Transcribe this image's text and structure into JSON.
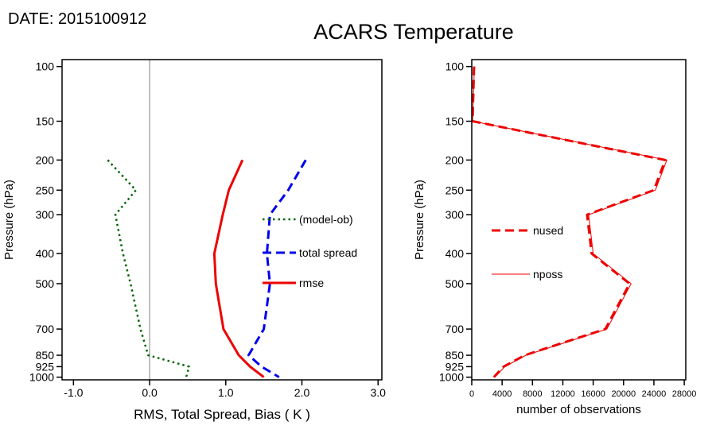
{
  "header": {
    "date_label": "DATE: 2015100912",
    "title": "ACARS Temperature"
  },
  "chart_data": [
    {
      "type": "line",
      "panel": "left",
      "xlabel": "RMS, Total Spread, Bias ( K )",
      "ylabel": "Pressure (hPa)",
      "xlim": [
        -1.15,
        3.05
      ],
      "xticks": [
        -1,
        0,
        1,
        2,
        3
      ],
      "xtick_labels": [
        "-1.0",
        "0.0",
        "1.0",
        "2.0",
        "3.0"
      ],
      "yscale": "log",
      "y_inverted": true,
      "ylim": [
        95,
        1020
      ],
      "yticks": [
        100,
        150,
        200,
        250,
        300,
        400,
        500,
        700,
        850,
        925,
        1000
      ],
      "refline_x": 0.0,
      "grid": false,
      "levels": [
        200,
        250,
        300,
        400,
        500,
        700,
        850,
        925,
        1000
      ],
      "series": [
        {
          "name": "(model-ob)",
          "color": "#006400",
          "style": "dotted",
          "width": 2.5,
          "values": [
            -0.55,
            -0.18,
            -0.45,
            -0.35,
            -0.25,
            -0.12,
            -0.02,
            0.52,
            0.48
          ]
        },
        {
          "name": "total spread",
          "color": "#0000ee",
          "style": "dashed",
          "width": 3,
          "values": [
            2.05,
            1.82,
            1.58,
            1.54,
            1.58,
            1.5,
            1.3,
            1.47,
            1.7
          ]
        },
        {
          "name": "rmse",
          "color": "#ee0000",
          "style": "solid",
          "width": 3,
          "values": [
            1.22,
            1.04,
            0.96,
            0.85,
            0.87,
            0.97,
            1.17,
            1.32,
            1.5
          ]
        }
      ],
      "legend_order": [
        "(model-ob)",
        "total spread",
        "rmse"
      ],
      "legend_position": "inside-right"
    },
    {
      "type": "line",
      "panel": "right",
      "xlabel": "number of observations",
      "ylabel": "Pressure (hPa)",
      "xlim": [
        0,
        28200
      ],
      "xticks": [
        0,
        4000,
        8000,
        12000,
        16000,
        20000,
        24000,
        28000
      ],
      "xtick_labels": [
        "0",
        "4000",
        "8000",
        "12000",
        "16000",
        "20000",
        "24000",
        "28000"
      ],
      "yscale": "log",
      "y_inverted": true,
      "ylim": [
        95,
        1020
      ],
      "yticks": [
        100,
        150,
        200,
        250,
        300,
        400,
        500,
        700,
        850,
        925,
        1000
      ],
      "grid": false,
      "levels": [
        100,
        150,
        200,
        250,
        300,
        400,
        500,
        700,
        850,
        925,
        1000
      ],
      "series": [
        {
          "name": "nposs",
          "color": "#ee0000",
          "style": "solid",
          "width": 1,
          "values": [
            350,
            120,
            25700,
            24200,
            15400,
            16000,
            21000,
            17800,
            7150,
            4350,
            3050
          ]
        },
        {
          "name": "nused",
          "color": "#ee0000",
          "style": "dashed",
          "width": 3,
          "values": [
            300,
            100,
            25500,
            24000,
            15200,
            15800,
            20800,
            17600,
            7000,
            4200,
            2900
          ]
        }
      ],
      "legend_order": [
        "nused",
        "nposs"
      ],
      "legend_position": "inside-left"
    }
  ]
}
